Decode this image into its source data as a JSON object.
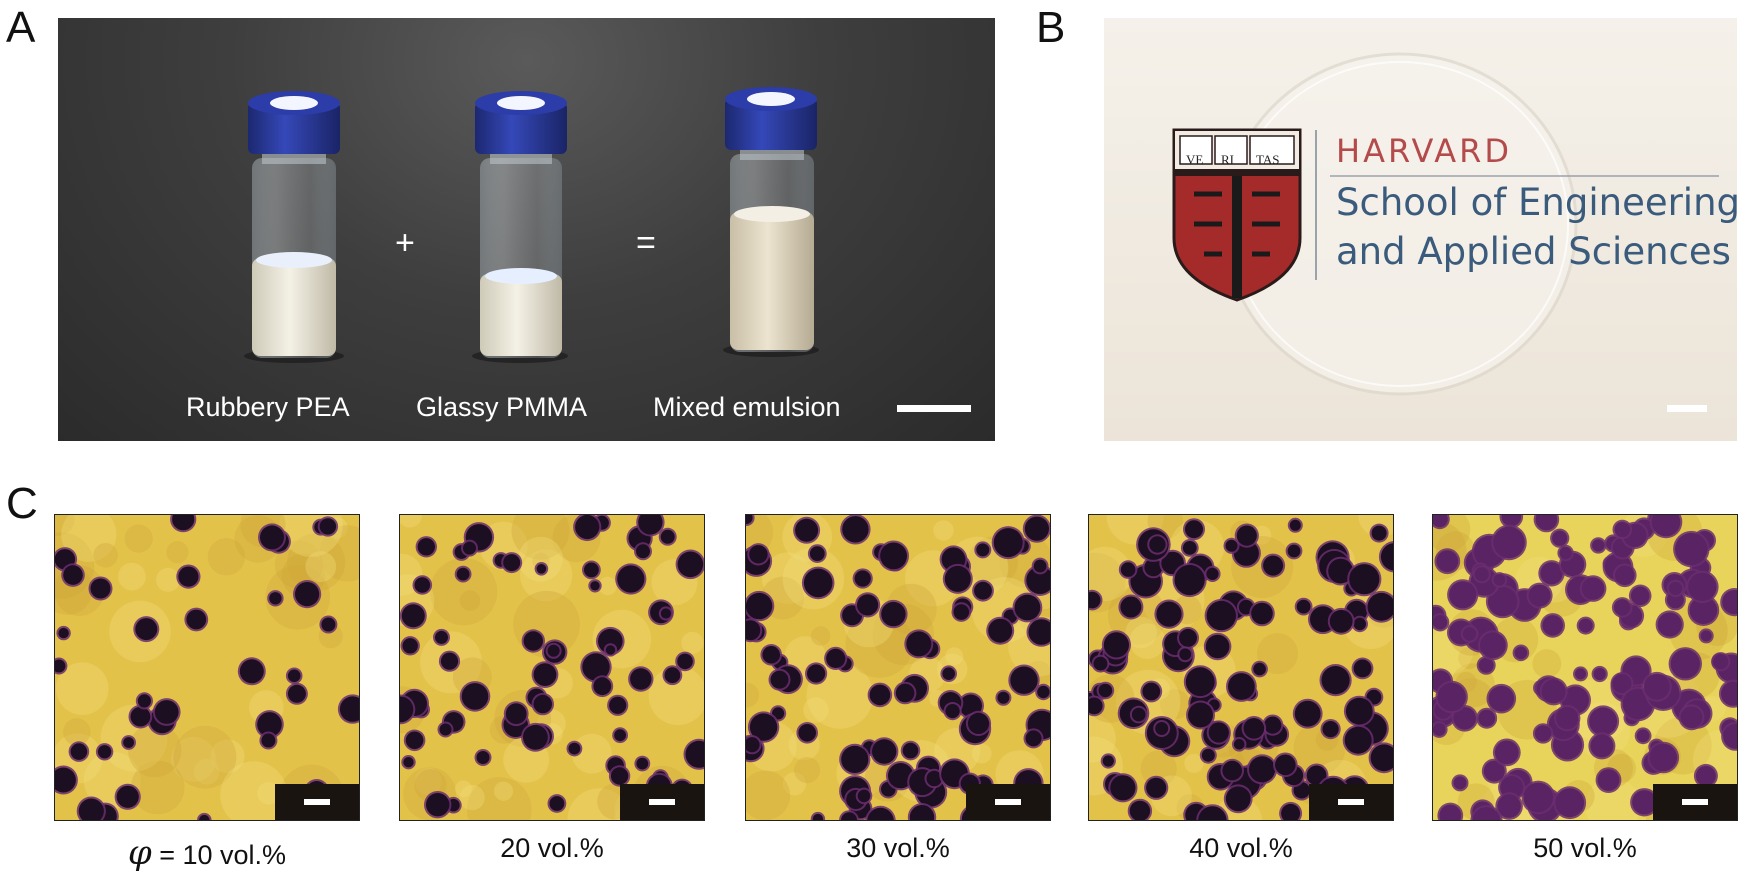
{
  "panels": {
    "a": {
      "letter": "A",
      "vials": [
        {
          "label": "Rubbery PEA"
        },
        {
          "label": "Glassy PMMA"
        },
        {
          "label": "Mixed emulsion"
        }
      ],
      "operators": {
        "plus": "+",
        "equals": "="
      }
    },
    "b": {
      "letter": "B",
      "logo": {
        "shield_text": [
          "VE",
          "RI",
          "TAS"
        ],
        "institution": "HARVARD",
        "school_line1": "School of Engineering",
        "school_line2": "and Applied Sciences"
      }
    },
    "c": {
      "letter": "C",
      "afm_images": [
        {
          "phi_symbol": "φ",
          "label": " = 10 vol.%",
          "fraction_percent": 10
        },
        {
          "label": "20 vol.%",
          "fraction_percent": 20
        },
        {
          "label": "30 vol.%",
          "fraction_percent": 30
        },
        {
          "label": "40 vol.%",
          "fraction_percent": 40
        },
        {
          "label": "50 vol.%",
          "fraction_percent": 50
        }
      ]
    }
  },
  "colors": {
    "afm_matrix": "#e3c24a",
    "afm_particle": "#1c0f22",
    "afm_particle_ring": "#6b2d6e",
    "vial_cap": "#2a3a9c",
    "harvard_red": "#b44b4b",
    "seas_blue": "#3b5b7d"
  }
}
